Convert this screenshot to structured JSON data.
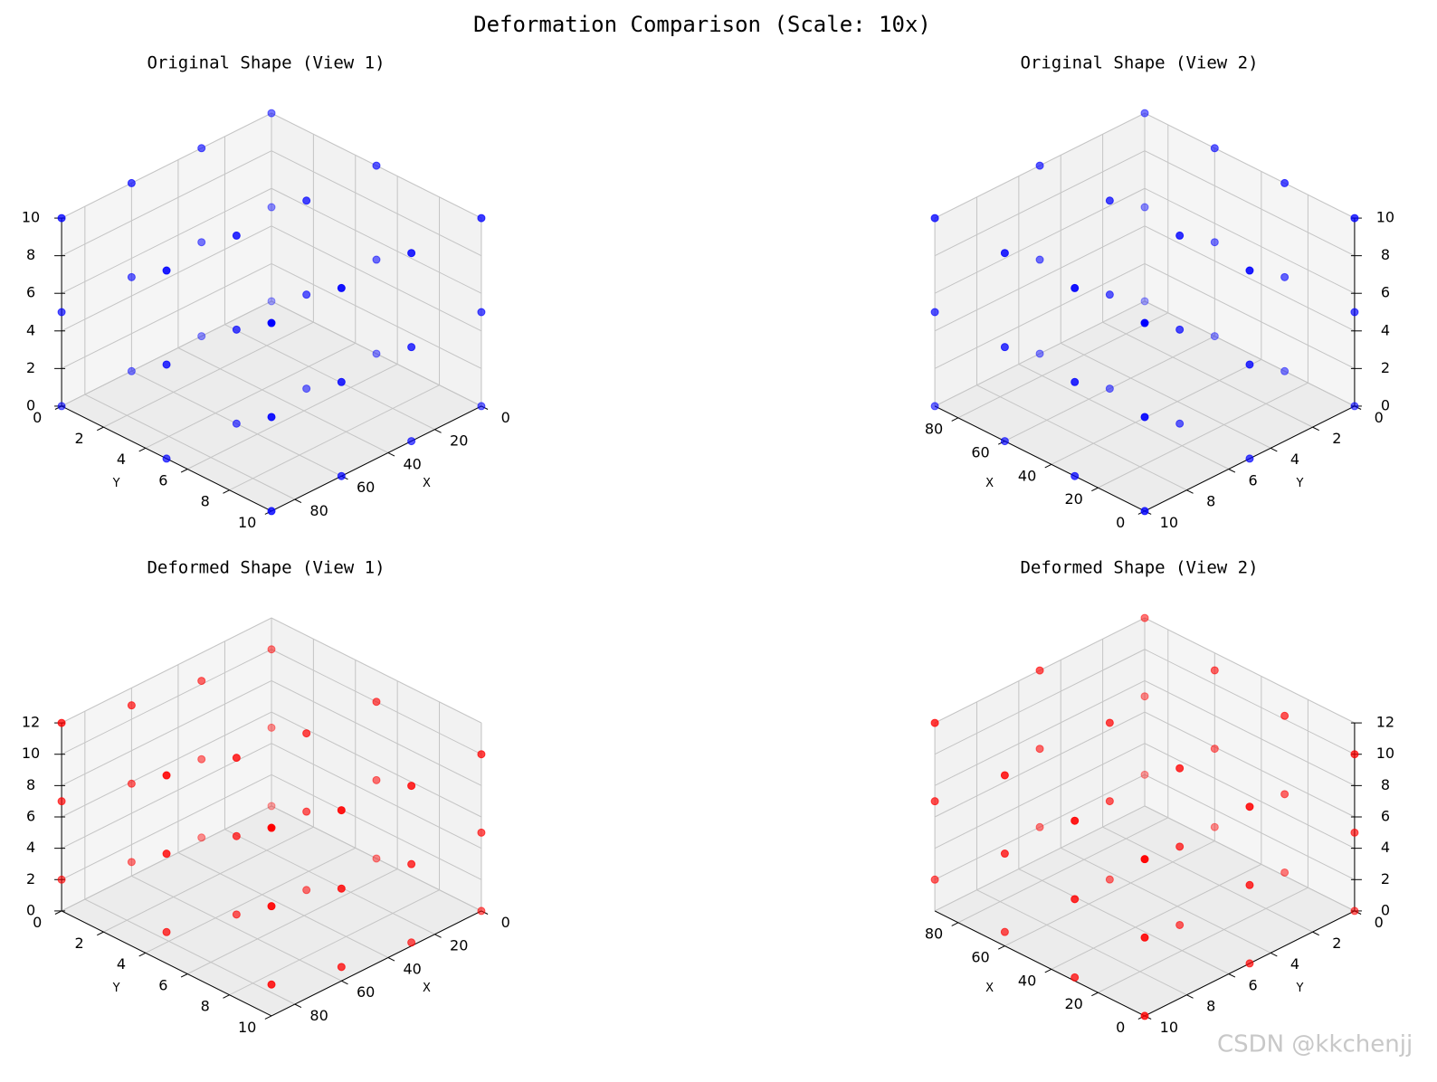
{
  "title": "Deformation Comparison (Scale: 10x)",
  "watermark": "CSDN @kkchenjj",
  "chart_data": [
    {
      "type": "scatter3d",
      "views": [
        {
          "title": "Original Shape (View 1)",
          "azim": 45,
          "elev": 30
        },
        {
          "title": "Original Shape (View 2)",
          "azim": 135,
          "elev": 30
        }
      ],
      "xlabel": "X",
      "ylabel": "Y",
      "color": "#0000ff",
      "x": [
        0,
        30,
        60,
        90,
        0,
        30,
        60,
        90,
        0,
        30,
        60,
        90,
        0,
        30,
        60,
        90,
        0,
        30,
        60,
        90,
        0,
        30,
        60,
        90,
        0,
        30,
        60,
        90,
        0,
        30,
        60,
        90,
        0,
        30,
        60,
        90
      ],
      "y": [
        0,
        0,
        0,
        0,
        5,
        5,
        5,
        5,
        10,
        10,
        10,
        10,
        0,
        0,
        0,
        0,
        5,
        5,
        5,
        5,
        10,
        10,
        10,
        10,
        0,
        0,
        0,
        0,
        5,
        5,
        5,
        5,
        10,
        10,
        10,
        10
      ],
      "z": [
        0,
        0,
        0,
        0,
        0,
        0,
        0,
        0,
        0,
        0,
        0,
        0,
        5,
        5,
        5,
        5,
        5,
        5,
        5,
        5,
        5,
        5,
        5,
        5,
        10,
        10,
        10,
        10,
        10,
        10,
        10,
        10,
        10,
        10,
        10,
        10
      ],
      "xlim": [
        0,
        90
      ],
      "ylim": [
        0,
        10
      ],
      "zlim": [
        0,
        10
      ],
      "xticks": [
        0,
        20,
        40,
        60,
        80
      ],
      "yticks": [
        0,
        2,
        4,
        6,
        8,
        10
      ],
      "zticks": [
        0,
        2,
        4,
        6,
        8,
        10
      ]
    },
    {
      "type": "scatter3d",
      "views": [
        {
          "title": "Deformed Shape (View 1)",
          "azim": 45,
          "elev": 30
        },
        {
          "title": "Deformed Shape (View 2)",
          "azim": 135,
          "elev": 30
        }
      ],
      "xlabel": "X",
      "ylabel": "Y",
      "color": "#ff0000",
      "x": [
        0,
        30,
        60,
        90,
        0,
        30,
        60,
        90,
        0,
        30,
        60,
        90,
        0,
        30,
        60,
        90,
        0,
        30,
        60,
        90,
        0,
        30,
        60,
        90,
        0,
        30,
        60,
        90,
        0,
        30,
        60,
        90,
        0,
        30,
        60,
        90
      ],
      "y": [
        0,
        0,
        0,
        0,
        5,
        5,
        5,
        5,
        10,
        10,
        10,
        10,
        0,
        0,
        0,
        0,
        5,
        5,
        5,
        5,
        10,
        10,
        10,
        10,
        0,
        0,
        0,
        0,
        5,
        5,
        5,
        5,
        10,
        10,
        10,
        10
      ],
      "z": [
        0,
        0.22,
        0.89,
        2,
        0,
        0.22,
        0.89,
        2,
        0,
        0.22,
        0.89,
        2,
        5,
        5.22,
        5.89,
        7,
        5,
        5.22,
        5.89,
        7,
        5,
        5.22,
        5.89,
        7,
        10,
        10.22,
        10.89,
        12,
        10,
        10.22,
        10.89,
        12,
        10,
        10.22,
        10.89,
        12
      ],
      "xlim": [
        0,
        90
      ],
      "ylim": [
        0,
        10
      ],
      "zlim": [
        0,
        12
      ],
      "xticks": [
        0,
        20,
        40,
        60,
        80
      ],
      "yticks": [
        0,
        2,
        4,
        6,
        8,
        10
      ],
      "zticks": [
        0,
        2,
        4,
        6,
        8,
        10,
        12
      ]
    }
  ]
}
